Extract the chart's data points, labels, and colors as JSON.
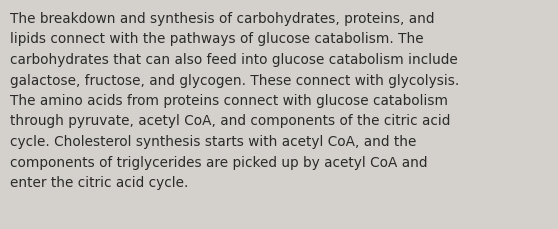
{
  "background_color": "#d4d1cc",
  "text_color": "#2b2b2b",
  "font_size": 9.8,
  "text_lines": [
    "The breakdown and synthesis of carbohydrates, proteins, and",
    "lipids connect with the pathways of glucose catabolism. The",
    "carbohydrates that can also feed into glucose catabolism include",
    "galactose, fructose, and glycogen. These connect with glycolysis.",
    "The amino acids from proteins connect with glucose catabolism",
    "through pyruvate, acetyl CoA, and components of the citric acid",
    "cycle. Cholesterol synthesis starts with acetyl CoA, and the",
    "components of triglycerides are picked up by acetyl CoA and",
    "enter the citric acid cycle."
  ],
  "fig_width": 5.58,
  "fig_height": 2.3,
  "dpi": 100
}
